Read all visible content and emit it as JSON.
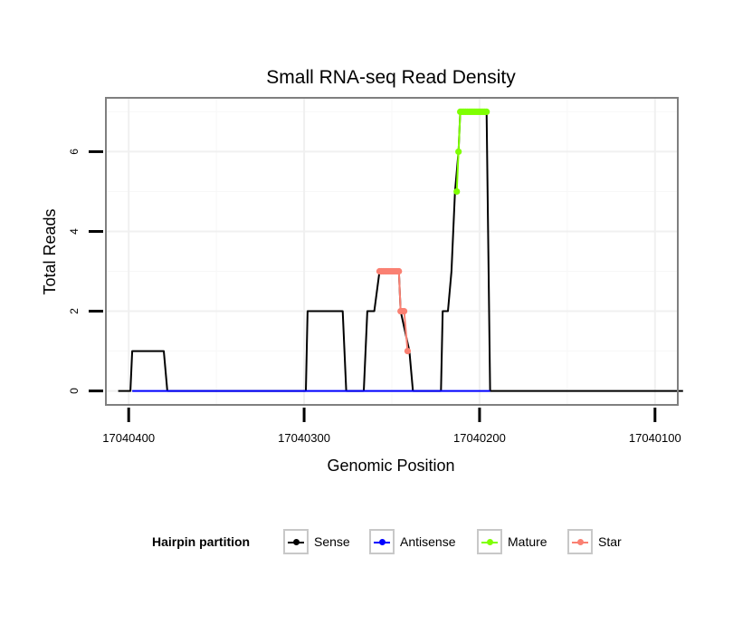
{
  "chart_data": {
    "type": "line",
    "title": "Small RNA-seq Read Density",
    "xlabel": "Genomic Position",
    "ylabel": "Total Reads",
    "x_reversed": true,
    "xlim": [
      17040413,
      17040087
    ],
    "ylim": [
      -0.35,
      7.35
    ],
    "x_ticks": [
      17040400,
      17040300,
      17040200,
      17040100
    ],
    "x_tick_labels": [
      "17040400",
      "17040300",
      "17040200",
      "17040100"
    ],
    "y_ticks": [
      0,
      2,
      4,
      6
    ],
    "y_tick_labels": [
      "0",
      "2",
      "4",
      "6"
    ],
    "grid": true,
    "legend_title": "Hairpin partition",
    "legend_position": "bottom",
    "series": [
      {
        "name": "Sense",
        "color": "#000000",
        "x": [
          17040406,
          17040399,
          17040398,
          17040380,
          17040378,
          17040305,
          17040299,
          17040298,
          17040278,
          17040276,
          17040266,
          17040264,
          17040260,
          17040257,
          17040256,
          17040246,
          17040245,
          17040240,
          17040238,
          17040236,
          17040234,
          17040222,
          17040221,
          17040218,
          17040216,
          17040214,
          17040212,
          17040211,
          17040210,
          17040196,
          17040194,
          17040084
        ],
        "y": [
          0,
          0,
          1,
          1,
          0,
          0,
          0,
          2,
          2,
          0,
          0,
          2,
          2,
          3,
          3,
          3,
          2,
          1,
          0,
          0,
          0,
          0,
          2,
          2,
          3,
          5,
          6,
          7,
          7,
          7,
          0,
          0
        ]
      },
      {
        "name": "Antisense",
        "color": "#0000ff",
        "x": [
          17040398,
          17040194
        ],
        "y": [
          0,
          0
        ]
      },
      {
        "name": "Mature",
        "color": "#7fff00",
        "x": [
          17040213,
          17040212,
          17040211,
          17040210,
          17040209,
          17040208,
          17040207,
          17040206,
          17040205,
          17040204,
          17040203,
          17040202,
          17040201,
          17040200,
          17040199,
          17040198,
          17040197,
          17040196
        ],
        "y": [
          5,
          6,
          7,
          7,
          7,
          7,
          7,
          7,
          7,
          7,
          7,
          7,
          7,
          7,
          7,
          7,
          7,
          7
        ]
      },
      {
        "name": "Star",
        "color": "#fa8072",
        "x": [
          17040257,
          17040256,
          17040255,
          17040254,
          17040253,
          17040252,
          17040251,
          17040250,
          17040249,
          17040248,
          17040247,
          17040246,
          17040245,
          17040244,
          17040243,
          17040241
        ],
        "y": [
          3,
          3,
          3,
          3,
          3,
          3,
          3,
          3,
          3,
          3,
          3,
          3,
          2,
          2,
          2,
          1
        ]
      }
    ]
  }
}
